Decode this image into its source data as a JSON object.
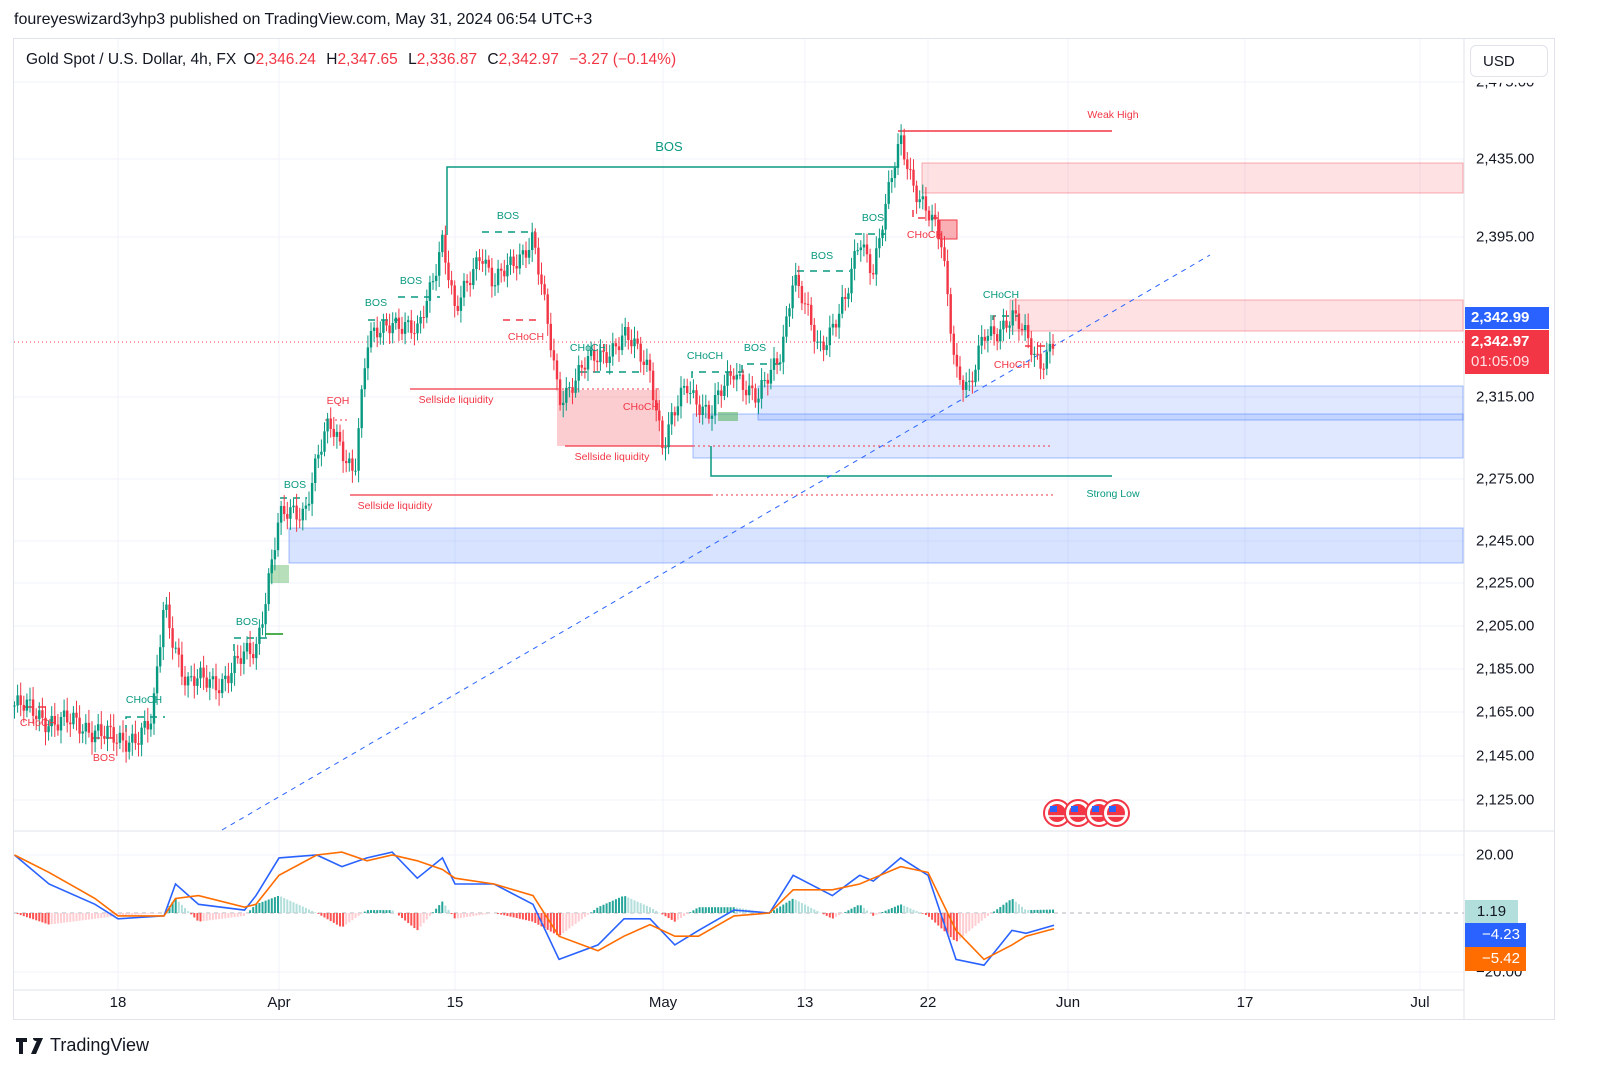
{
  "publisher_line": "foureyeswizard3yhp3 published on TradingView.com, May 31, 2024 06:54 UTC+3",
  "legend": {
    "symbol": "Gold Spot / U.S. Dollar, 4h, FX",
    "o_label": "O",
    "o": "2,346.24",
    "h_label": "H",
    "h": "2,347.65",
    "l_label": "L",
    "l": "2,336.87",
    "c_label": "C",
    "c": "2,342.97",
    "change": "−3.27 (−0.14%)"
  },
  "currency_button": "USD",
  "price_axis": {
    "ticks": [
      "2,475.00",
      "2,435.00",
      "2,395.00",
      "2,315.00",
      "2,275.00",
      "2,245.00",
      "2,225.00",
      "2,205.00",
      "2,185.00",
      "2,165.00",
      "2,145.00",
      "2,125.00"
    ],
    "bid_tag": "2,342.99",
    "last_tag": "2,342.97",
    "countdown": "01:05:09"
  },
  "macd_axis": {
    "ticks": [
      "20.00",
      "−20.00"
    ],
    "hist_tag": "1.19",
    "macd_tag": "−4.23",
    "signal_tag": "−5.42"
  },
  "time_axis": [
    "18",
    "Apr",
    "15",
    "May",
    "13",
    "22",
    "Jun",
    "17",
    "Jul"
  ],
  "annotations": {
    "choch_1": "CHoCH",
    "bos_1": "BOS",
    "choch_2": "CHoCH",
    "bos_2": "BOS",
    "bos_3": "BOS",
    "eqh": "EQH",
    "sellside_1": "Sellside liquidity",
    "bos_4": "BOS",
    "bos_5": "BOS",
    "bos_6": "BOS",
    "bos_main": "BOS",
    "sellside_2": "Sellside liquidity",
    "choch_3": "CHoCH",
    "choch_4": "CHoCH",
    "choch_5": "CHoCH",
    "sellside_3": "Sellside liquidity",
    "choch_6": "CHoCH",
    "bos_7": "BOS",
    "bos_8": "BOS",
    "bos_9": "BOS",
    "choch_7": "CHoCH",
    "weak_high": "Weak High",
    "choch_8": "CHoCH",
    "choch_9": "CHoCH",
    "strong_low": "Strong Low"
  },
  "footer_brand": "TradingView",
  "colors": {
    "up": "#089981",
    "down": "#f23645",
    "macd": "#2962ff",
    "signal": "#ff6d00",
    "bid": "#2962ff",
    "zone_supply": "#f2364533",
    "zone_demand": "#2962ff33"
  },
  "chart_data": {
    "type": "candlestick",
    "title": "Gold Spot / U.S. Dollar, 4h, FX",
    "ylim": [
      2110,
      2480
    ],
    "approx_closes": [
      [
        "2024-03-09",
        2168
      ],
      [
        "2024-03-13",
        2160
      ],
      [
        "2024-03-16",
        2158
      ],
      [
        "2024-03-18",
        2150
      ],
      [
        "2024-03-21",
        2160
      ],
      [
        "2024-03-22",
        2215
      ],
      [
        "2024-03-24",
        2178
      ],
      [
        "2024-03-27",
        2180
      ],
      [
        "2024-03-30",
        2195
      ],
      [
        "2024-04-01",
        2255
      ],
      [
        "2024-04-03",
        2260
      ],
      [
        "2024-04-04",
        2285
      ],
      [
        "2024-04-05",
        2300
      ],
      [
        "2024-04-07",
        2280
      ],
      [
        "2024-04-08",
        2340
      ],
      [
        "2024-04-10",
        2355
      ],
      [
        "2024-04-12",
        2345
      ],
      [
        "2024-04-14",
        2395
      ],
      [
        "2024-04-15",
        2355
      ],
      [
        "2024-04-17",
        2390
      ],
      [
        "2024-04-18",
        2370
      ],
      [
        "2024-04-21",
        2395
      ],
      [
        "2024-04-22",
        2355
      ],
      [
        "2024-04-23",
        2315
      ],
      [
        "2024-04-25",
        2330
      ],
      [
        "2024-04-28",
        2345
      ],
      [
        "2024-04-30",
        2330
      ],
      [
        "2024-05-01",
        2290
      ],
      [
        "2024-05-03",
        2322
      ],
      [
        "2024-05-05",
        2305
      ],
      [
        "2024-05-07",
        2330
      ],
      [
        "2024-05-09",
        2312
      ],
      [
        "2024-05-11",
        2340
      ],
      [
        "2024-05-12",
        2375
      ],
      [
        "2024-05-14",
        2340
      ],
      [
        "2024-05-16",
        2362
      ],
      [
        "2024-05-17",
        2395
      ],
      [
        "2024-05-18",
        2380
      ],
      [
        "2024-05-20",
        2445
      ],
      [
        "2024-05-21",
        2422
      ],
      [
        "2024-05-23",
        2390
      ],
      [
        "2024-05-24",
        2330
      ],
      [
        "2024-05-25",
        2318
      ],
      [
        "2024-05-26",
        2345
      ],
      [
        "2024-05-28",
        2355
      ],
      [
        "2024-05-30",
        2333
      ],
      [
        "2024-05-31",
        2343
      ]
    ],
    "macd": {
      "ylim": [
        -22,
        22
      ],
      "points": [
        [
          "2024-03-09",
          20,
          20
        ],
        [
          "2024-03-12",
          10,
          14
        ],
        [
          "2024-03-16",
          3,
          5
        ],
        [
          "2024-03-18",
          -2,
          -1
        ],
        [
          "2024-03-22",
          -1,
          -1
        ],
        [
          "2024-03-23",
          10,
          5
        ],
        [
          "2024-03-25",
          3,
          6
        ],
        [
          "2024-03-29",
          1,
          2
        ],
        [
          "2024-03-30",
          6,
          3
        ],
        [
          "2024-04-01",
          19,
          13
        ],
        [
          "2024-04-04",
          20,
          20
        ],
        [
          "2024-04-06",
          16,
          21
        ],
        [
          "2024-04-08",
          19,
          18
        ],
        [
          "2024-04-10",
          21,
          20
        ],
        [
          "2024-04-12",
          12,
          18
        ],
        [
          "2024-04-14",
          19,
          15
        ],
        [
          "2024-04-15",
          10,
          12
        ],
        [
          "2024-04-18",
          10,
          10
        ],
        [
          "2024-04-21",
          3,
          6
        ],
        [
          "2024-04-23",
          -16,
          -8
        ],
        [
          "2024-04-26",
          -11,
          -13
        ],
        [
          "2024-04-28",
          -2,
          -8
        ],
        [
          "2024-04-30",
          -2,
          -4
        ],
        [
          "2024-05-02",
          -11,
          -8
        ],
        [
          "2024-05-04",
          -6,
          -8
        ],
        [
          "2024-05-07",
          1,
          -1
        ],
        [
          "2024-05-10",
          0,
          0
        ],
        [
          "2024-05-12",
          13,
          8
        ],
        [
          "2024-05-15",
          6,
          8
        ],
        [
          "2024-05-17",
          13,
          10
        ],
        [
          "2024-05-18",
          11,
          12
        ],
        [
          "2024-05-20",
          19,
          16
        ],
        [
          "2024-05-22",
          13,
          14
        ],
        [
          "2024-05-24",
          -16,
          -6
        ],
        [
          "2024-05-26",
          -18,
          -16
        ],
        [
          "2024-05-28",
          -6,
          -11
        ],
        [
          "2024-05-29",
          -7,
          -8
        ],
        [
          "2024-05-31",
          -4.23,
          -5.42
        ]
      ]
    }
  }
}
